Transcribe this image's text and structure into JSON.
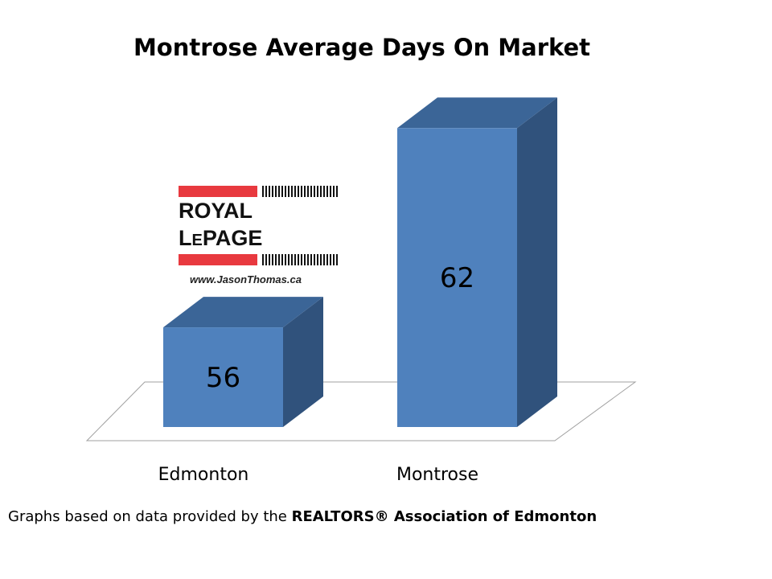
{
  "chart_data": {
    "type": "bar",
    "title": "Montrose Average Days On Market",
    "categories": [
      "Edmonton",
      "Montrose"
    ],
    "values": [
      56,
      62
    ],
    "data_labels": [
      "56",
      "62"
    ],
    "xlabel": "",
    "ylabel": "",
    "ylim": [
      53,
      63
    ],
    "grid": false,
    "style": "3d-column",
    "colors": {
      "front": "#4f81bd",
      "top": "#3b6597",
      "side": "#30527c",
      "floor_stroke": "#a0a0a0"
    }
  },
  "logo": {
    "brand": "ROYAL LEPAGE",
    "website": "www.JasonThomas.ca"
  },
  "footer": {
    "text": "Graphs based on data provided by the ",
    "bold": "REALTORS® Association of Edmonton"
  }
}
